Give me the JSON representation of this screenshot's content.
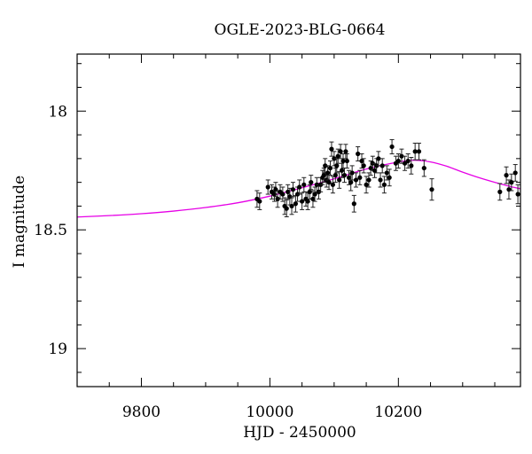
{
  "chart_data": {
    "type": "scatter",
    "title": "OGLE-2023-BLG-0664",
    "xlabel": "HJD - 2450000",
    "ylabel": "I magnitude",
    "xlim": [
      9700,
      10390
    ],
    "ylim": [
      19.16,
      17.76
    ],
    "y_inverted": true,
    "grid": false,
    "x_ticks": [
      "9800",
      "10000",
      "10200"
    ],
    "y_ticks": [
      "18",
      "18.5",
      "19"
    ],
    "model_color": "#e600e6",
    "point_color": "#000000",
    "model": {
      "name": "",
      "x": [
        9700,
        9750,
        9800,
        9850,
        9900,
        9950,
        10000,
        10050,
        10100,
        10150,
        10200,
        10225,
        10250,
        10275,
        10300,
        10325,
        10350,
        10375,
        10390
      ],
      "y": [
        18.446,
        18.44,
        18.432,
        18.421,
        18.406,
        18.386,
        18.358,
        18.323,
        18.285,
        18.244,
        18.214,
        18.207,
        18.214,
        18.232,
        18.257,
        18.28,
        18.3,
        18.318,
        18.327
      ]
    },
    "series": [
      {
        "name": "",
        "x": [
          9980,
          9984,
          9997,
          10003,
          10007,
          10009,
          10012,
          10016,
          10020,
          10023,
          10026,
          10028,
          10031,
          10034,
          10036,
          10040,
          10043,
          10046,
          10050,
          10053,
          10056,
          10059,
          10062,
          10064,
          10067,
          10070,
          10073,
          10076,
          10079,
          10082,
          10084,
          10086,
          10088,
          10090,
          10092,
          10094,
          10096,
          10098,
          10100,
          10102,
          10104,
          10106,
          10108,
          10110,
          10112,
          10114,
          10116,
          10118,
          10120,
          10123,
          10126,
          10128,
          10131,
          10134,
          10137,
          10140,
          10143,
          10146,
          10150,
          10154,
          10157,
          10160,
          10163,
          10166,
          10169,
          10172,
          10175,
          10178,
          10182,
          10186,
          10190,
          10196,
          10200,
          10205,
          10210,
          10215,
          10220,
          10226,
          10232,
          10240,
          10252,
          10358,
          10368,
          10372,
          10376,
          10382,
          10386
        ],
        "y": [
          18.37,
          18.38,
          18.32,
          18.34,
          18.35,
          18.33,
          18.37,
          18.34,
          18.35,
          18.4,
          18.41,
          18.34,
          18.36,
          18.4,
          18.33,
          18.39,
          18.35,
          18.32,
          18.38,
          18.31,
          18.37,
          18.38,
          18.34,
          18.3,
          18.37,
          18.35,
          18.31,
          18.34,
          18.31,
          18.28,
          18.27,
          18.23,
          18.29,
          18.26,
          18.3,
          18.24,
          18.16,
          18.31,
          18.2,
          18.27,
          18.23,
          18.19,
          18.29,
          18.17,
          18.25,
          18.21,
          18.27,
          18.17,
          18.21,
          18.28,
          18.3,
          18.26,
          18.39,
          18.29,
          18.18,
          18.28,
          18.21,
          18.23,
          18.31,
          18.29,
          18.24,
          18.22,
          18.25,
          18.23,
          18.2,
          18.29,
          18.23,
          18.31,
          18.26,
          18.28,
          18.15,
          18.22,
          18.21,
          18.19,
          18.22,
          18.21,
          18.23,
          18.17,
          18.17,
          18.24,
          18.33,
          18.34,
          18.27,
          18.33,
          18.3,
          18.26,
          18.35
        ],
        "err": [
          0.035,
          0.035,
          0.03,
          0.03,
          0.03,
          0.03,
          0.035,
          0.03,
          0.03,
          0.035,
          0.035,
          0.03,
          0.035,
          0.035,
          0.03,
          0.035,
          0.03,
          0.03,
          0.035,
          0.03,
          0.03,
          0.035,
          0.03,
          0.03,
          0.035,
          0.03,
          0.03,
          0.03,
          0.03,
          0.03,
          0.03,
          0.03,
          0.03,
          0.03,
          0.03,
          0.03,
          0.03,
          0.035,
          0.03,
          0.03,
          0.03,
          0.03,
          0.035,
          0.03,
          0.03,
          0.03,
          0.03,
          0.03,
          0.03,
          0.03,
          0.035,
          0.03,
          0.035,
          0.03,
          0.03,
          0.03,
          0.03,
          0.03,
          0.035,
          0.03,
          0.03,
          0.03,
          0.03,
          0.03,
          0.03,
          0.03,
          0.03,
          0.035,
          0.03,
          0.035,
          0.03,
          0.03,
          0.03,
          0.03,
          0.03,
          0.03,
          0.035,
          0.035,
          0.035,
          0.035,
          0.045,
          0.035,
          0.035,
          0.04,
          0.035,
          0.035,
          0.04
        ]
      }
    ]
  }
}
